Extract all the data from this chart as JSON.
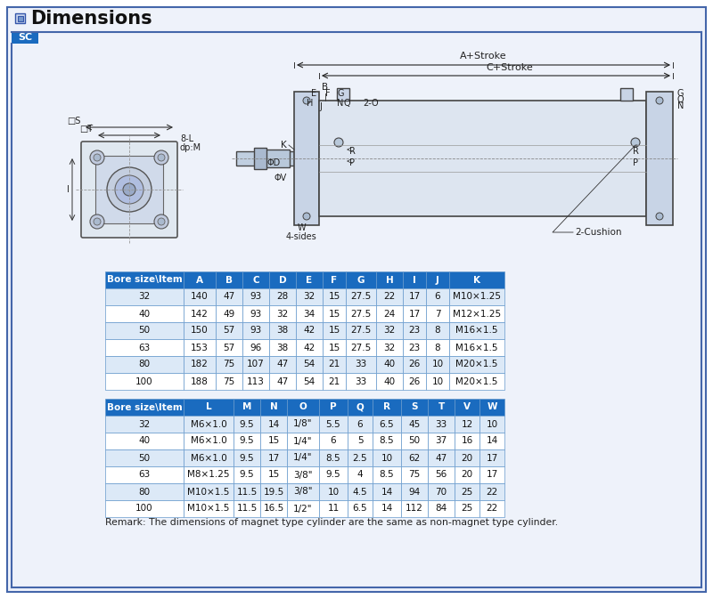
{
  "title": "Dimensions",
  "sc_label": "SC",
  "header_bg": "#1a6bbf",
  "header_text_color": "#ffffff",
  "row_alt_color": "#dce9f7",
  "row_white": "#ffffff",
  "border_color": "#6699cc",
  "table1_headers": [
    "Bore size\\Item",
    "A",
    "B",
    "C",
    "D",
    "E",
    "F",
    "G",
    "H",
    "I",
    "J",
    "K"
  ],
  "table1_rows": [
    [
      "32",
      "140",
      "47",
      "93",
      "28",
      "32",
      "15",
      "27.5",
      "22",
      "17",
      "6",
      "M10×1.25"
    ],
    [
      "40",
      "142",
      "49",
      "93",
      "32",
      "34",
      "15",
      "27.5",
      "24",
      "17",
      "7",
      "M12×1.25"
    ],
    [
      "50",
      "150",
      "57",
      "93",
      "38",
      "42",
      "15",
      "27.5",
      "32",
      "23",
      "8",
      "M16×1.5"
    ],
    [
      "63",
      "153",
      "57",
      "96",
      "38",
      "42",
      "15",
      "27.5",
      "32",
      "23",
      "8",
      "M16×1.5"
    ],
    [
      "80",
      "182",
      "75",
      "107",
      "47",
      "54",
      "21",
      "33",
      "40",
      "26",
      "10",
      "M20×1.5"
    ],
    [
      "100",
      "188",
      "75",
      "113",
      "47",
      "54",
      "21",
      "33",
      "40",
      "26",
      "10",
      "M20×1.5"
    ]
  ],
  "table2_headers": [
    "Bore size\\Item",
    "L",
    "M",
    "N",
    "O",
    "P",
    "Q",
    "R",
    "S",
    "T",
    "V",
    "W"
  ],
  "table2_rows": [
    [
      "32",
      "M6×1.0",
      "9.5",
      "14",
      "1/8\"",
      "5.5",
      "6",
      "6.5",
      "45",
      "33",
      "12",
      "10"
    ],
    [
      "40",
      "M6×1.0",
      "9.5",
      "15",
      "1/4\"",
      "6",
      "5",
      "8.5",
      "50",
      "37",
      "16",
      "14"
    ],
    [
      "50",
      "M6×1.0",
      "9.5",
      "17",
      "1/4\"",
      "8.5",
      "2.5",
      "10",
      "62",
      "47",
      "20",
      "17"
    ],
    [
      "63",
      "M8×1.25",
      "9.5",
      "15",
      "3/8\"",
      "9.5",
      "4",
      "8.5",
      "75",
      "56",
      "20",
      "17"
    ],
    [
      "80",
      "M10×1.5",
      "11.5",
      "19.5",
      "3/8\"",
      "10",
      "4.5",
      "14",
      "94",
      "70",
      "25",
      "22"
    ],
    [
      "100",
      "M10×1.5",
      "11.5",
      "16.5",
      "1/2\"",
      "11",
      "6.5",
      "14",
      "112",
      "84",
      "25",
      "22"
    ]
  ],
  "remark": "Remark: The dimensions of magnet type cylinder are the same as non-magnet type cylinder.",
  "outer_border_color": "#4466aa",
  "outer_bg": "#eef2fa",
  "title_icon_color": "#4466bb",
  "t1_col_widths": [
    88,
    36,
    30,
    30,
    30,
    30,
    26,
    34,
    30,
    26,
    26,
    62
  ],
  "t2_col_widths": [
    88,
    56,
    30,
    30,
    36,
    32,
    28,
    32,
    30,
    30,
    28,
    28
  ]
}
